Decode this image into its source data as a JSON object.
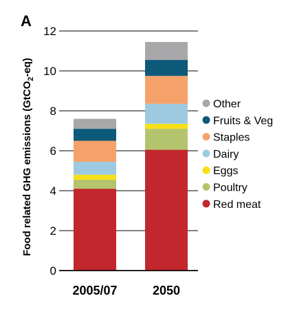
{
  "panel_label": "A",
  "chart_data": {
    "type": "bar",
    "stacked": true,
    "categories": [
      "2005/07",
      "2050"
    ],
    "ylabel_main": "Food related GHG emissions (GtCO",
    "ylabel_sub": "2",
    "ylabel_end": "-eq)",
    "ylim": [
      0,
      12
    ],
    "yticks": [
      0,
      2,
      4,
      6,
      8,
      10,
      12
    ],
    "grid": "horizontal",
    "legend_position": "right",
    "series": [
      {
        "name": "Red meat",
        "color": "#c1272d",
        "values": [
          4.1,
          6.05
        ]
      },
      {
        "name": "Poultry",
        "color": "#b4c46e",
        "values": [
          0.45,
          1.05
        ]
      },
      {
        "name": "Eggs",
        "color": "#f7e017",
        "values": [
          0.25,
          0.25
        ]
      },
      {
        "name": "Dairy",
        "color": "#9ecae1",
        "values": [
          0.65,
          1.0
        ]
      },
      {
        "name": "Staples",
        "color": "#f5a26a",
        "values": [
          1.05,
          1.4
        ]
      },
      {
        "name": "Fruits & Veg",
        "color": "#0d5a7a",
        "values": [
          0.6,
          0.8
        ]
      },
      {
        "name": "Other",
        "color": "#a8a8aa",
        "values": [
          0.5,
          0.9
        ]
      }
    ]
  }
}
